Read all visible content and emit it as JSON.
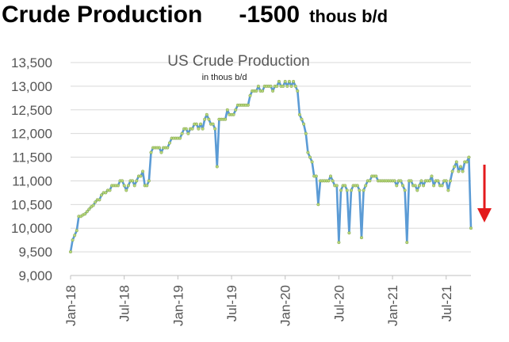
{
  "headline": {
    "part1": "Crude Production",
    "part2": "-1500",
    "part3": "thous b/d"
  },
  "chart_data": {
    "type": "line",
    "title": "US Crude Production",
    "subtitle": "in thous b/d",
    "ylim": [
      9000,
      13500
    ],
    "yticks": [
      9000,
      9500,
      10000,
      10500,
      11000,
      11500,
      12000,
      12500,
      13000,
      13500
    ],
    "ytick_labels": [
      "9,000",
      "9,500",
      "10,000",
      "10,500",
      "11,000",
      "11,500",
      "12,000",
      "12,500",
      "13,000",
      "13,500"
    ],
    "xtick_labels": [
      "Jan-18",
      "Jul-18",
      "Jan-19",
      "Jul-19",
      "Jan-20",
      "Jul-20",
      "Jan-21",
      "Jul-21"
    ],
    "xticks_week_index": [
      0,
      26,
      52,
      78,
      104,
      130,
      156,
      182
    ],
    "x_unit": "week starting Jan-18",
    "grid": true,
    "legend": "none",
    "line_color": "#5b9bd5",
    "marker_color": "#b6d77a",
    "arrow_color": "#e31a1c",
    "values": [
      9500,
      9750,
      9850,
      9950,
      10250,
      10250,
      10280,
      10300,
      10350,
      10400,
      10450,
      10480,
      10550,
      10600,
      10600,
      10700,
      10750,
      10750,
      10800,
      10800,
      10900,
      10900,
      10900,
      10900,
      11000,
      11000,
      10900,
      10800,
      10900,
      11000,
      11000,
      10900,
      11000,
      11100,
      11100,
      11200,
      10900,
      10900,
      11000,
      11600,
      11700,
      11700,
      11700,
      11700,
      11600,
      11700,
      11700,
      11700,
      11800,
      11900,
      11900,
      11900,
      11900,
      11900,
      12000,
      12100,
      12100,
      12000,
      12100,
      12100,
      12200,
      12200,
      12100,
      12200,
      12100,
      12300,
      12400,
      12300,
      12200,
      12200,
      12100,
      11300,
      12300,
      12300,
      12300,
      12300,
      12500,
      12400,
      12400,
      12400,
      12500,
      12600,
      12600,
      12600,
      12600,
      12600,
      12600,
      12800,
      12900,
      12900,
      12900,
      13000,
      12900,
      12900,
      13000,
      13000,
      13000,
      13000,
      12900,
      13000,
      13000,
      13100,
      13000,
      13000,
      13100,
      13000,
      13100,
      13000,
      13100,
      13000,
      12900,
      12400,
      12300,
      12200,
      12000,
      11600,
      11500,
      11400,
      11100,
      11100,
      10500,
      11000,
      11000,
      11000,
      11000,
      11000,
      11100,
      11000,
      10900,
      10900,
      9700,
      10800,
      10900,
      10900,
      10800,
      9900,
      10800,
      10900,
      10900,
      10900,
      10800,
      9800,
      10800,
      10900,
      11000,
      11000,
      11100,
      11100,
      11100,
      11000,
      11000,
      11000,
      11000,
      11000,
      11000,
      11000,
      11000,
      11000,
      10900,
      11000,
      11000,
      10900,
      10800,
      9700,
      11000,
      11000,
      10900,
      10900,
      10800,
      10900,
      11000,
      10900,
      11000,
      11000,
      11000,
      11100,
      10900,
      11000,
      11000,
      10900,
      10900,
      11000,
      11000,
      10800,
      11000,
      11200,
      11300,
      11400,
      11200,
      11300,
      11200,
      11400,
      11400,
      11500,
      10000
    ]
  }
}
